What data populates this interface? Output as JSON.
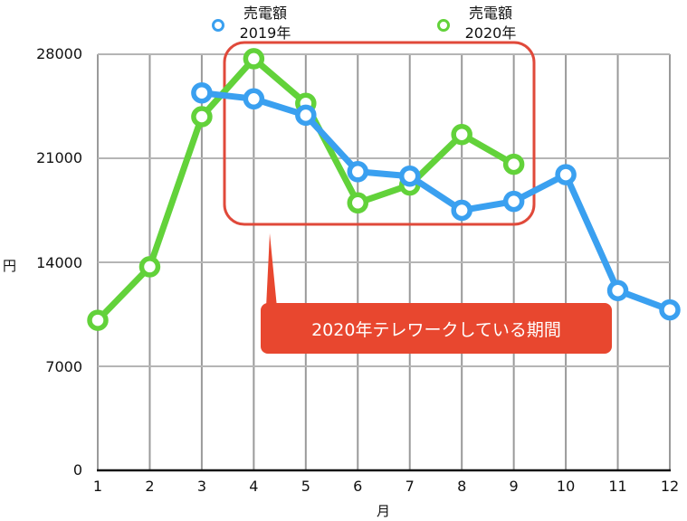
{
  "chart_data": {
    "type": "line",
    "title": "",
    "xlabel": "月",
    "ylabel": "円",
    "x": [
      1,
      2,
      3,
      4,
      5,
      6,
      7,
      8,
      9,
      10,
      11,
      12
    ],
    "ylim": [
      0,
      28000
    ],
    "yticks": [
      0,
      7000,
      14000,
      21000,
      28000
    ],
    "grid": true,
    "legend_position": "top",
    "series": [
      {
        "name": "売電額 2019年",
        "color": "#3aa0f0",
        "values": [
          null,
          null,
          25400,
          25000,
          23900,
          20100,
          19800,
          17500,
          18100,
          19900,
          12100,
          10800
        ]
      },
      {
        "name": "売電額 2020年",
        "color": "#62d23a",
        "values": [
          10100,
          13700,
          23800,
          27700,
          24700,
          18000,
          19200,
          22600,
          20600,
          null,
          null,
          null
        ]
      }
    ],
    "annotations": [
      {
        "type": "highlight-box",
        "from_x": 3.5,
        "to_x": 9.3,
        "color": "#e0493a"
      },
      {
        "type": "callout",
        "text": "2020年テレワークしている期間",
        "color": "#e8472f"
      }
    ]
  },
  "legend": [
    {
      "line1": "売電額",
      "line2": "2019年",
      "color": "#3aa0f0"
    },
    {
      "line1": "売電額",
      "line2": "2020年",
      "color": "#62d23a"
    }
  ],
  "yticks": [
    "28000",
    "21000",
    "14000",
    "7000",
    "0"
  ],
  "xticks": [
    "1",
    "2",
    "3",
    "4",
    "5",
    "6",
    "7",
    "8",
    "9",
    "10",
    "11",
    "12"
  ],
  "axis": {
    "x_title": "月",
    "y_title": "円"
  },
  "callout": {
    "text": "2020年テレワークしている期間"
  }
}
